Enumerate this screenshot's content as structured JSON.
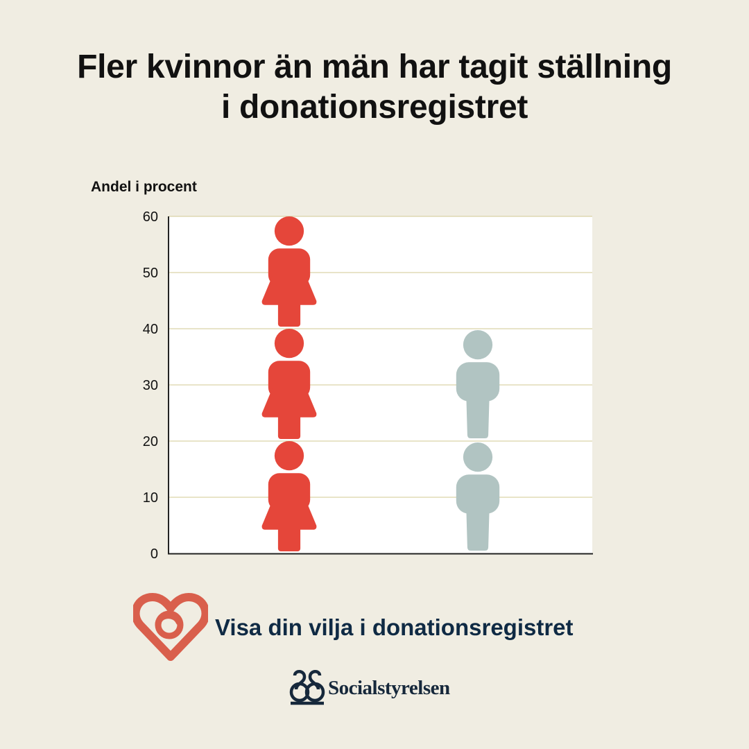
{
  "title": {
    "line1": "Fler kvinnor än män har tagit ställning",
    "line2": "i donationsregistret"
  },
  "cta": {
    "text": "Visa din vilja i donationsregistret"
  },
  "brand": {
    "name": "Socialstyrelsen"
  },
  "colors": {
    "background": "#f0ede2",
    "women": "#e5463a",
    "men": "#b1c4c2",
    "gridline": "#d9d3a6",
    "cta_text": "#0f2a44",
    "heart": "#d95f4c"
  },
  "icons": {
    "women": "female-figure-icon",
    "men": "male-figure-icon",
    "cta": "heart-link-icon",
    "brand": "socialstyrelsen-logo-icon"
  },
  "chart_data": {
    "type": "bar",
    "subtype": "pictograph",
    "ylabel": "Andel i procent",
    "xlabel": "",
    "ylim": [
      0,
      60
    ],
    "yticks": [
      0,
      10,
      20,
      30,
      40,
      50,
      60
    ],
    "grid": true,
    "legend": "none",
    "categories": [
      "Kvinnor",
      "Män"
    ],
    "category_labels_shown": false,
    "values": [
      60,
      40
    ],
    "icon_unit": 20,
    "series_colors": [
      "#e5463a",
      "#b1c4c2"
    ],
    "series_icons": [
      "female-figure-icon",
      "male-figure-icon"
    ]
  }
}
